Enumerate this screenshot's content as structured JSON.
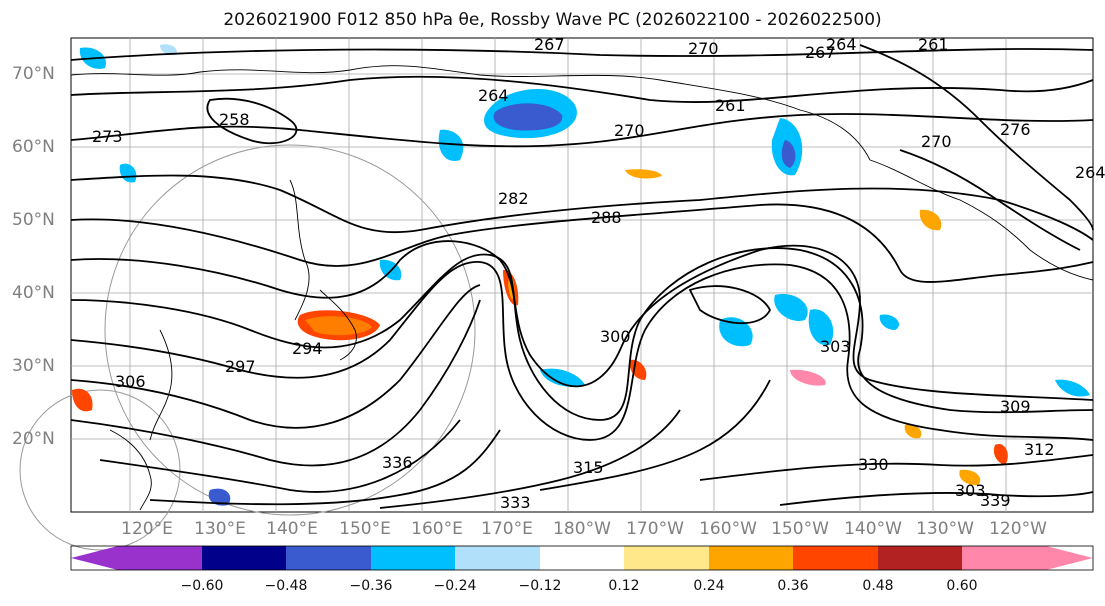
{
  "title": "2026021900 F012 850 hPa θe, Rossby Wave PC (2026022100 - 2026022500)",
  "lat_labels": [
    "70°N",
    "60°N",
    "50°N",
    "40°N",
    "30°N",
    "20°N"
  ],
  "lon_labels": [
    "120°E",
    "130°E",
    "140°E",
    "150°E",
    "160°E",
    "170°E",
    "180°W",
    "170°W",
    "160°W",
    "150°W",
    "140°W",
    "130°W",
    "120°W"
  ],
  "contour_labels": [
    "267",
    "270",
    "264",
    "261",
    "258",
    "273",
    "267",
    "264",
    "270",
    "261",
    "270",
    "264",
    "282",
    "288",
    "276",
    "300",
    "303",
    "306",
    "309",
    "312",
    "315",
    "294",
    "297",
    "330",
    "333",
    "336",
    "339",
    "303"
  ],
  "colorbar": {
    "ticks": [
      "−0.60",
      "−0.48",
      "−0.36",
      "−0.24",
      "−0.12",
      "0.12",
      "0.24",
      "0.36",
      "0.48",
      "0.60"
    ],
    "colors": [
      "#9932cc",
      "#00008b",
      "#3a5bd0",
      "#00bfff",
      "#b0e0fa",
      "#ffffff",
      "#ffe88a",
      "#ffa500",
      "#ff4500",
      "#b22222",
      "#ff88aa"
    ],
    "under_color": "#9932cc",
    "over_color": "#ff88aa"
  },
  "colors": {
    "land_outline": "#000000",
    "contour": "#000000",
    "grid": "#a0a0a0",
    "axis_label": "#808080"
  }
}
